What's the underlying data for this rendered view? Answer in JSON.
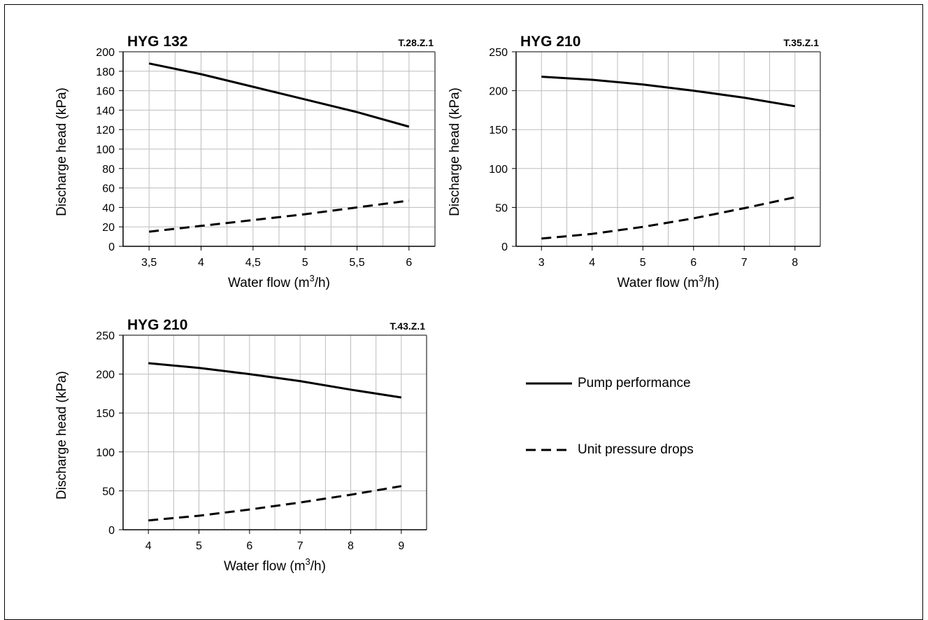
{
  "chart_data": [
    {
      "type": "line",
      "title": "HYG 132",
      "code": "T.28.Z.1",
      "xlabel": "Water flow (m",
      "xlabel_sup": "3",
      "xlabel_end": "/h)",
      "ylabel": "Discharge head (kPa)",
      "x_ticks": [
        "3,5",
        "4",
        "4,5",
        "5",
        "5,5",
        "6"
      ],
      "y_ticks": [
        "0",
        "20",
        "40",
        "60",
        "80",
        "100",
        "120",
        "140",
        "160",
        "180",
        "200"
      ],
      "xlim": [
        3.25,
        6.25
      ],
      "ylim": [
        0,
        200
      ],
      "x_gridlines": [
        3.5,
        3.75,
        4,
        4.25,
        4.5,
        4.75,
        5,
        5.25,
        5.5,
        5.75,
        6
      ],
      "grid": true,
      "series": [
        {
          "name": "Pump performance",
          "style": "solid",
          "x": [
            3.5,
            4,
            4.5,
            5,
            5.5,
            6
          ],
          "y": [
            188,
            177,
            164,
            151,
            138,
            123
          ]
        },
        {
          "name": "Unit pressure drops",
          "style": "dashed",
          "x": [
            3.5,
            4,
            4.5,
            5,
            5.5,
            6
          ],
          "y": [
            15,
            21,
            27,
            33,
            40,
            47
          ]
        }
      ]
    },
    {
      "type": "line",
      "title": "HYG 210",
      "code": "T.35.Z.1",
      "xlabel": "Water flow (m",
      "xlabel_sup": "3",
      "xlabel_end": "/h)",
      "ylabel": "Discharge head (kPa)",
      "x_ticks": [
        "3",
        "4",
        "5",
        "6",
        "7",
        "8"
      ],
      "y_ticks": [
        "0",
        "50",
        "100",
        "150",
        "200",
        "250"
      ],
      "xlim": [
        2.5,
        8.5
      ],
      "ylim": [
        0,
        250
      ],
      "x_gridlines": [
        3,
        3.5,
        4,
        4.5,
        5,
        5.5,
        6,
        6.5,
        7,
        7.5,
        8
      ],
      "grid": true,
      "series": [
        {
          "name": "Pump performance",
          "style": "solid",
          "x": [
            3,
            4,
            5,
            6,
            7,
            8
          ],
          "y": [
            218,
            214,
            208,
            200,
            191,
            180
          ]
        },
        {
          "name": "Unit pressure drops",
          "style": "dashed",
          "x": [
            3,
            4,
            5,
            6,
            7,
            8
          ],
          "y": [
            10,
            16,
            25,
            36,
            49,
            63
          ]
        }
      ]
    },
    {
      "type": "line",
      "title": "HYG 210",
      "code": "T.43.Z.1",
      "xlabel": "Water flow (m",
      "xlabel_sup": "3",
      "xlabel_end": "/h)",
      "ylabel": "Discharge head (kPa)",
      "x_ticks": [
        "4",
        "5",
        "6",
        "7",
        "8",
        "9"
      ],
      "y_ticks": [
        "0",
        "50",
        "100",
        "150",
        "200",
        "250"
      ],
      "xlim": [
        3.5,
        9.5
      ],
      "ylim": [
        0,
        250
      ],
      "x_gridlines": [
        4,
        4.5,
        5,
        5.5,
        6,
        6.5,
        7,
        7.5,
        8,
        8.5,
        9
      ],
      "grid": true,
      "series": [
        {
          "name": "Pump performance",
          "style": "solid",
          "x": [
            4,
            5,
            6,
            7,
            8,
            9
          ],
          "y": [
            214,
            208,
            200,
            191,
            180,
            170
          ]
        },
        {
          "name": "Unit pressure drops",
          "style": "dashed",
          "x": [
            4,
            5,
            6,
            7,
            8,
            9
          ],
          "y": [
            12,
            18,
            26,
            35,
            45,
            56
          ]
        }
      ]
    }
  ],
  "legend": {
    "placement": "right",
    "items": [
      {
        "label": "Pump performance",
        "style": "solid"
      },
      {
        "label": "Unit pressure drops",
        "style": "dashed"
      }
    ]
  },
  "colors": {
    "line": "#000000",
    "grid": "#bdbdbd",
    "axis": "#000000"
  }
}
